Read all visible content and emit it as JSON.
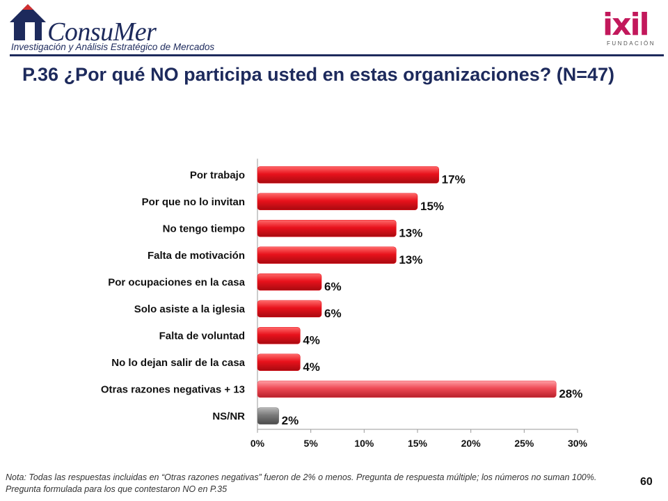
{
  "header": {
    "logo_left_name": "ConsuMer",
    "logo_left_tagline": "Investigación y Análisis Estratégico de Mercados",
    "logo_right_name": "ixil",
    "logo_right_sub": "FUNDACIÓN"
  },
  "title": "P.36 ¿Por qué NO participa usted en estas organizaciones? (N=47)",
  "chart_data": {
    "type": "bar",
    "orientation": "horizontal",
    "categories": [
      "Por trabajo",
      "Por que no lo invitan",
      "No tengo tiempo",
      "Falta de motivación",
      "Por ocupaciones en la casa",
      "Solo asiste a la iglesia",
      "Falta de voluntad",
      "No lo dejan salir de la casa",
      "Otras razones negativas + 13",
      "NS/NR"
    ],
    "values": [
      17,
      15,
      13,
      13,
      6,
      6,
      4,
      4,
      28,
      2
    ],
    "value_labels": [
      "17%",
      "15%",
      "13%",
      "13%",
      "6%",
      "6%",
      "4%",
      "4%",
      "28%",
      "2%"
    ],
    "bar_colors": [
      "#e8121c",
      "#e8121c",
      "#e8121c",
      "#e8121c",
      "#e8121c",
      "#e8121c",
      "#e8121c",
      "#e8121c",
      "#ee4a55",
      "#7a7a7a"
    ],
    "xlim": [
      0,
      30
    ],
    "xticks": [
      0,
      5,
      10,
      15,
      20,
      25,
      30
    ],
    "xtick_labels": [
      "0%",
      "5%",
      "10%",
      "15%",
      "20%",
      "25%",
      "30%"
    ],
    "grid": false,
    "legend": "none"
  },
  "footnote": "Nota: Todas las respuestas incluidas en “Otras razones negativas” fueron de 2% o menos. Pregunta de respuesta múltiple; los números no suman 100%. Pregunta formulada para los que contestaron NO en P.35",
  "page_number": "60"
}
